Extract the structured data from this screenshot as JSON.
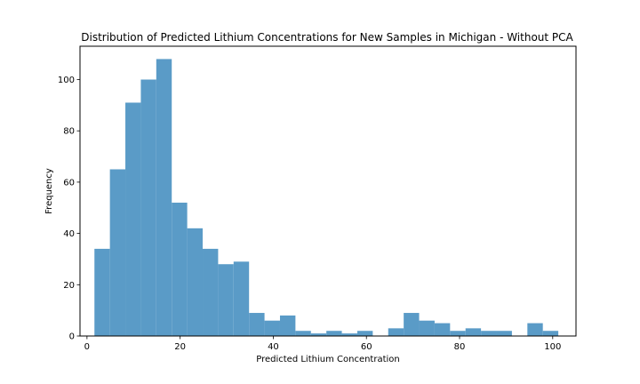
{
  "chart_data": {
    "type": "bar",
    "title": "Distribution of Predicted Lithium Concentrations for New Samples in Michigan - Without PCA",
    "xlabel": "Predicted Lithium Concentration",
    "ylabel": "Frequency",
    "xlim": [
      -1.5,
      105
    ],
    "ylim": [
      0,
      113
    ],
    "xticks": [
      0,
      20,
      40,
      60,
      80,
      100
    ],
    "yticks": [
      0,
      20,
      40,
      60,
      80,
      100
    ],
    "bin_start": 1.6,
    "bin_width": 3.32,
    "values": [
      34,
      65,
      91,
      100,
      108,
      52,
      42,
      34,
      28,
      29,
      9,
      6,
      8,
      2,
      1,
      2,
      1,
      2,
      0,
      3,
      9,
      6,
      5,
      2,
      3,
      2,
      2,
      0,
      5,
      2
    ],
    "bar_color": "#5a9bc7",
    "grid": false,
    "legend": "none"
  }
}
